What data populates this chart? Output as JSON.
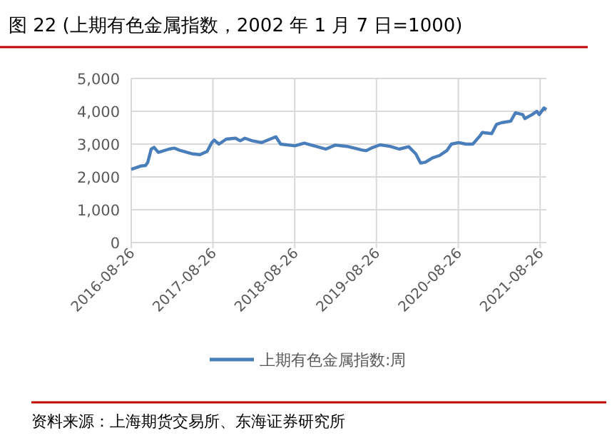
{
  "chart_data": {
    "type": "line",
    "title": "图 22 (上期有色金属指数，2002 年 1 月 7 日=1000)",
    "annotations": [
      "资料来源：上海期货交易所、东海证券研究所"
    ],
    "x": [
      "2016-08-26",
      "2016-10-07",
      "2016-10-29",
      "2016-11-08",
      "2016-11-23",
      "2016-12-06",
      "2016-12-25",
      "2017-02-11",
      "2017-03-05",
      "2017-04-05",
      "2017-05-28",
      "2017-06-29",
      "2017-07-31",
      "2017-08-21",
      "2017-09-01",
      "2017-09-22",
      "2017-10-24",
      "2017-12-05",
      "2017-12-26",
      "2018-01-16",
      "2018-02-17",
      "2018-04-01",
      "2018-06-03",
      "2018-06-24",
      "2018-08-27",
      "2018-10-08",
      "2018-11-20",
      "2019-01-12",
      "2019-02-23",
      "2019-04-17",
      "2019-06-20",
      "2019-07-11",
      "2019-08-11",
      "2019-09-12",
      "2019-10-25",
      "2019-12-06",
      "2020-01-17",
      "2020-02-18",
      "2020-03-10",
      "2020-04-01",
      "2020-05-02",
      "2020-06-03",
      "2020-07-05",
      "2020-07-26",
      "2020-08-27",
      "2020-09-28",
      "2020-10-29",
      "2020-11-30",
      "2020-12-11",
      "2021-01-22",
      "2021-02-12",
      "2021-03-06",
      "2021-04-17",
      "2021-05-08",
      "2021-06-09",
      "2021-06-19",
      "2021-07-21",
      "2021-08-11",
      "2021-08-22",
      "2021-09-12",
      "2021-09-23"
    ],
    "series": [
      {
        "name": "上期有色金属指数:周",
        "color": "#4a7ebb",
        "values": [
          2230,
          2330,
          2350,
          2450,
          2850,
          2900,
          2750,
          2850,
          2880,
          2800,
          2700,
          2680,
          2780,
          3050,
          3120,
          3000,
          3150,
          3180,
          3100,
          3180,
          3100,
          3050,
          3220,
          3000,
          2950,
          3030,
          2950,
          2850,
          2970,
          2930,
          2820,
          2800,
          2900,
          2980,
          2930,
          2850,
          2920,
          2700,
          2420,
          2450,
          2580,
          2650,
          2800,
          3000,
          3050,
          3000,
          3000,
          3250,
          3350,
          3320,
          3600,
          3650,
          3700,
          3950,
          3900,
          3780,
          3900,
          4000,
          3900,
          4100,
          4050
        ]
      }
    ],
    "xlim": [
      "2016-08-26",
      "2021-09-23"
    ],
    "xticks": [
      "2016-08-26",
      "2017-08-26",
      "2018-08-26",
      "2019-08-26",
      "2020-08-26",
      "2021-08-26"
    ],
    "ylim": [
      0,
      5000
    ],
    "yticks": [
      {
        "value": 0,
        "label": "0"
      },
      {
        "value": 1000,
        "label": "1,000"
      },
      {
        "value": 2000,
        "label": "2,000"
      },
      {
        "value": 3000,
        "label": "3,000"
      },
      {
        "value": 4000,
        "label": "4,000"
      },
      {
        "value": 5000,
        "label": "5,000"
      }
    ],
    "grid": true,
    "legend": "bottom",
    "marker": "none",
    "line_style": "solid"
  }
}
